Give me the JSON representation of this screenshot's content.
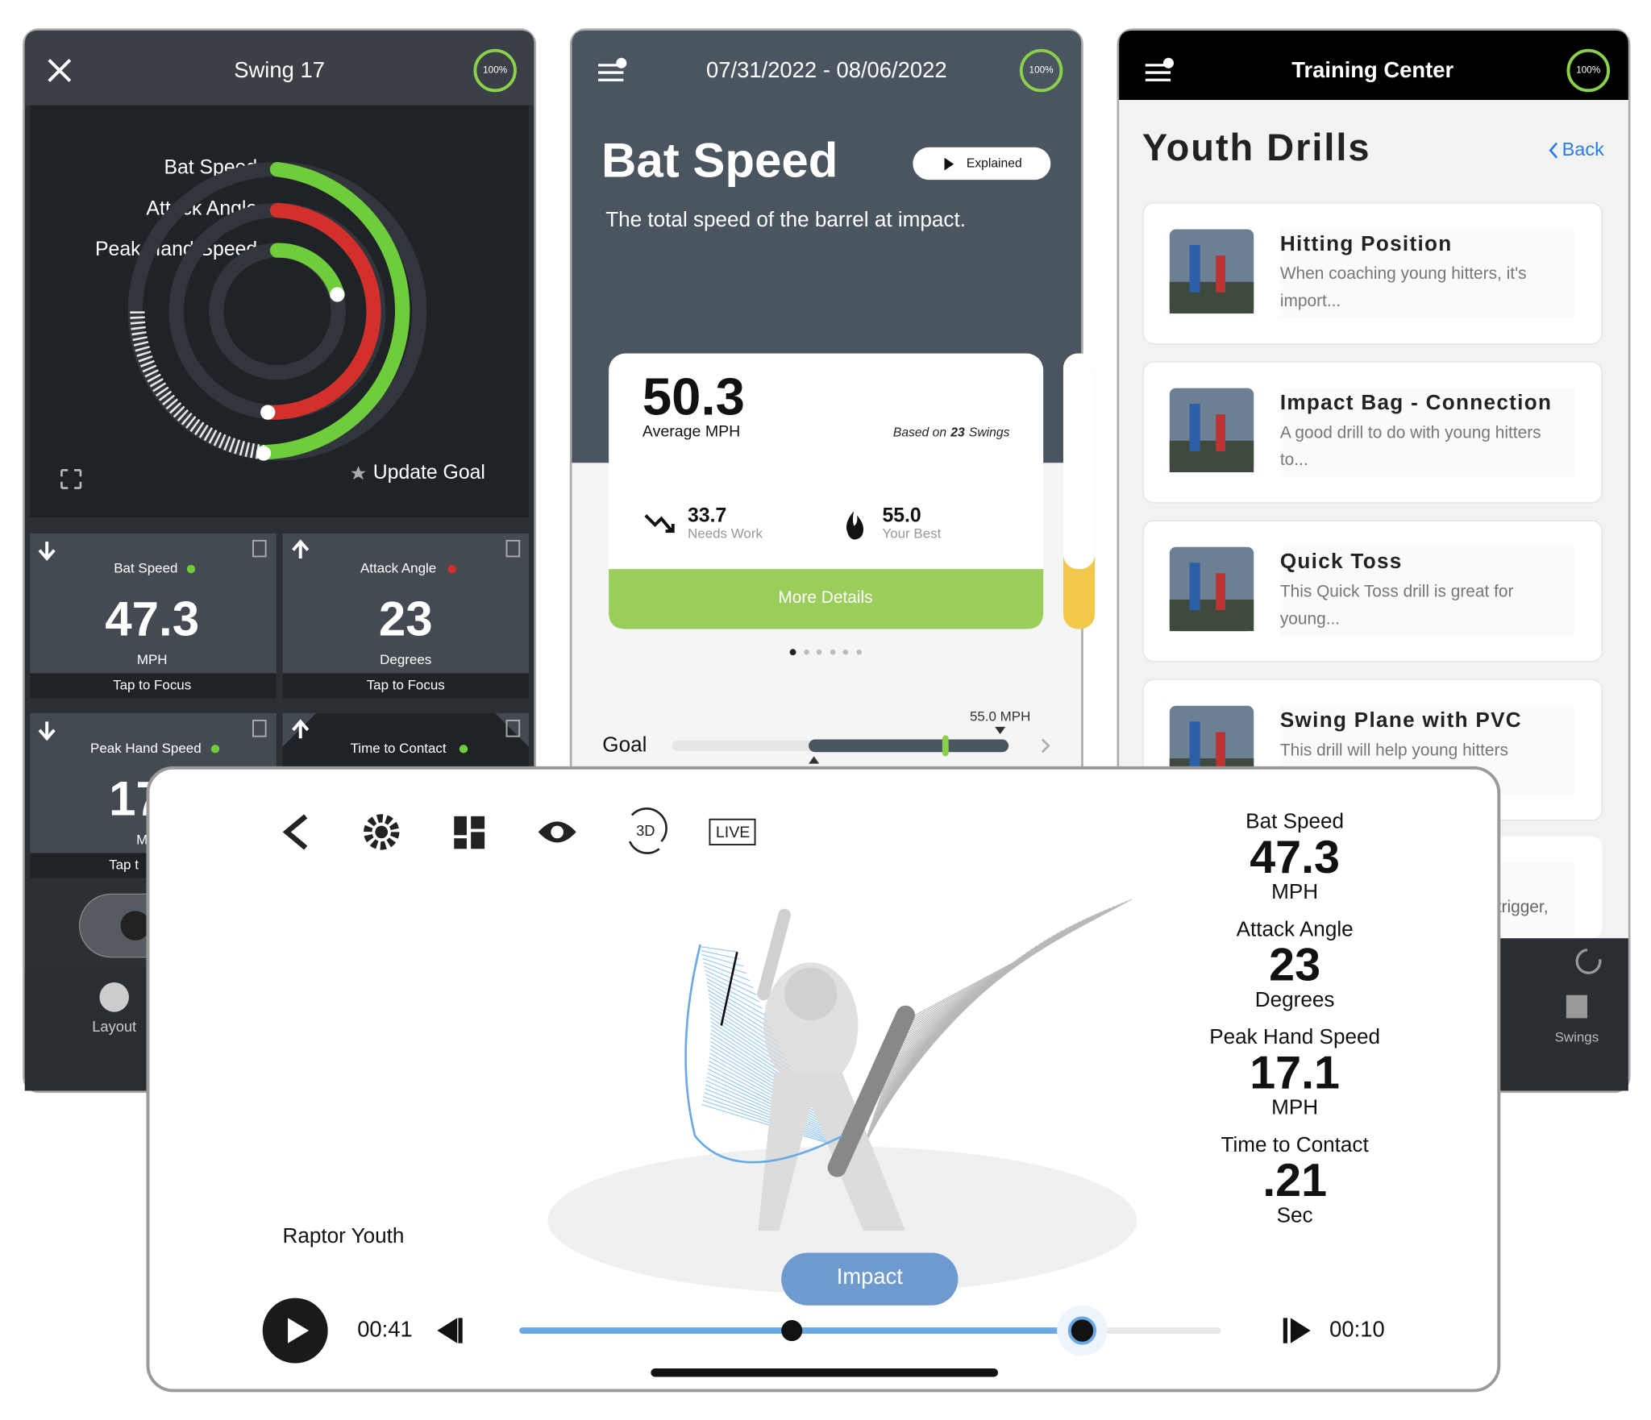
{
  "swing_screen": {
    "title": "Swing 17",
    "progress": "100%",
    "ring_labels": [
      "Bat Speed",
      "Attack Angle",
      "Peak Hand Speed"
    ],
    "update_goal": "Update Goal",
    "tiles": [
      {
        "label": "Bat Speed",
        "value": "47.3",
        "unit": "MPH",
        "action": "Tap to Focus"
      },
      {
        "label": "Attack Angle",
        "value": "23",
        "unit": "Degrees",
        "action": "Tap to Focus"
      },
      {
        "label": "Peak Hand Speed",
        "value": "17",
        "unit": "M",
        "action": "Tap t"
      },
      {
        "label": "Time to Contact"
      }
    ],
    "nav": [
      "Layout"
    ]
  },
  "stats_screen": {
    "date_range": "07/31/2022 - 08/06/2022",
    "progress": "100%",
    "title": "Bat Speed",
    "explained": "Explained",
    "description": "The total speed of the barrel at impact.",
    "card": {
      "average": "50.3",
      "average_label": "Average MPH",
      "based_prefix": "Based on",
      "based_count": "23",
      "based_suffix": "Swings",
      "needs_work": "33.7",
      "needs_work_label": "Needs Work",
      "best": "55.0",
      "best_label": "Your Best",
      "button": "More Details"
    },
    "goal_label": "Goal",
    "goal_value": "55.0 MPH"
  },
  "drills_screen": {
    "header": "Training Center",
    "progress": "100%",
    "title": "Youth Drills",
    "back": "Back",
    "drills": [
      {
        "title": "Hitting Position",
        "description": "When coaching young hitters, it's",
        "description_2": "import..."
      },
      {
        "title": "Impact Bag - Connection",
        "description": "A good drill to do with young hitters",
        "description_2": "to..."
      },
      {
        "title": "Quick Toss",
        "description": "This Quick Toss drill is great for",
        "description_2": "young..."
      },
      {
        "title": "Swing Plane with PVC",
        "description": "This drill will help young hitters"
      }
    ],
    "hidden_text": "trigger,",
    "nav": [
      "Swings"
    ]
  },
  "player_screen": {
    "live": "LIVE",
    "view_3d": "3D",
    "metrics": [
      {
        "label": "Bat Speed",
        "value": "47.3",
        "unit": "MPH"
      },
      {
        "label": "Attack Angle",
        "value": "23",
        "unit": "Degrees"
      },
      {
        "label": "Peak Hand Speed",
        "value": "17.1",
        "unit": "MPH"
      },
      {
        "label": "Time to Contact",
        "value": ".21",
        "unit": "Sec"
      }
    ],
    "player": "Raptor Youth",
    "phase": "Impact",
    "elapsed": "00:41",
    "remaining": "00:10"
  }
}
